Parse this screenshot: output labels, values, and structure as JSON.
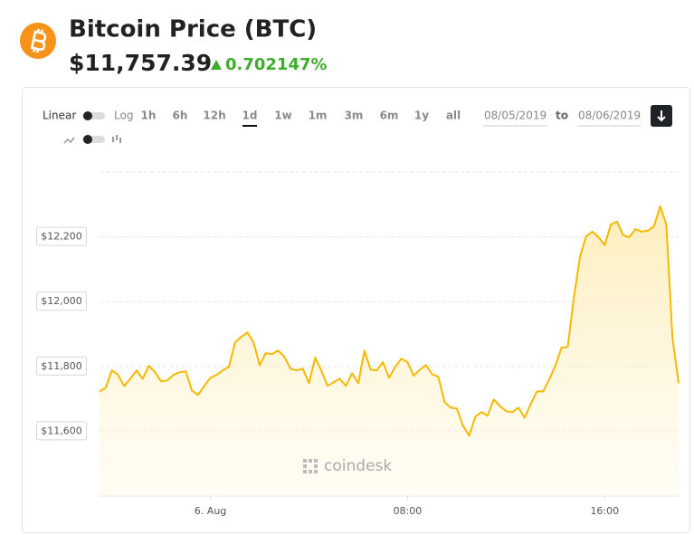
{
  "header": {
    "title": "Bitcoin Price (BTC)",
    "price": "$11,757.39",
    "change": "0.702147%"
  },
  "controls": {
    "scale_options": [
      "Linear",
      "Log"
    ],
    "ranges": [
      "1h",
      "6h",
      "12h",
      "1d",
      "1w",
      "1m",
      "3m",
      "6m",
      "1y",
      "all"
    ],
    "active_range": 3,
    "date_from": "08/05/2019",
    "date_to_label": "to",
    "date_to": "08/06/2019"
  },
  "watermark": "coindesk",
  "chart_data": {
    "type": "line",
    "color": "#f5b900",
    "grid": true,
    "x": [
      -4.5,
      -4.25,
      -4,
      -3.75,
      -3.5,
      -3.25,
      -3,
      -2.75,
      -2.5,
      -2.25,
      -2,
      -1.75,
      -1.5,
      -1.25,
      -1,
      -0.75,
      -0.5,
      -0.25,
      0,
      0.25,
      0.5,
      0.75,
      1,
      1.25,
      1.5,
      1.75,
      2,
      2.25,
      2.5,
      2.75,
      3,
      3.25,
      3.5,
      3.75,
      4,
      4.25,
      4.5,
      4.75,
      5,
      5.25,
      5.5,
      5.75,
      6,
      6.25,
      6.5,
      6.75,
      7,
      7.25,
      7.5,
      7.75,
      8,
      8.25,
      8.5,
      8.75,
      9,
      9.25,
      9.5,
      9.75,
      10,
      10.25,
      10.5,
      10.75,
      11,
      11.25,
      11.5,
      11.75,
      12,
      12.25,
      12.5,
      12.75,
      13,
      13.25,
      13.5,
      13.75,
      14,
      14.25,
      14.5,
      14.75,
      15,
      15.25,
      15.5,
      15.75,
      16,
      16.25,
      16.5,
      16.75,
      17,
      17.25,
      17.5,
      17.75,
      18,
      18.25,
      18.5,
      18.75,
      19
    ],
    "values": [
      11723,
      11734,
      11788,
      11774,
      11740,
      11762,
      11788,
      11762,
      11802,
      11782,
      11754,
      11757,
      11774,
      11782,
      11785,
      11726,
      11712,
      11740,
      11765,
      11774,
      11788,
      11799,
      11874,
      11891,
      11905,
      11874,
      11804,
      11841,
      11838,
      11849,
      11830,
      11793,
      11788,
      11793,
      11748,
      11827,
      11788,
      11740,
      11751,
      11762,
      11740,
      11779,
      11748,
      11849,
      11790,
      11788,
      11813,
      11765,
      11799,
      11824,
      11813,
      11771,
      11790,
      11804,
      11776,
      11768,
      11690,
      11673,
      11670,
      11617,
      11586,
      11645,
      11659,
      11648,
      11698,
      11678,
      11662,
      11659,
      11673,
      11642,
      11684,
      11723,
      11723,
      11760,
      11802,
      11858,
      11860,
      12014,
      12140,
      12202,
      12216,
      12199,
      12174,
      12238,
      12247,
      12205,
      12199,
      12224,
      12216,
      12219,
      12233,
      12294,
      12238,
      11888,
      11748
    ],
    "xlim": [
      -4.5,
      19
    ],
    "xticks": [
      {
        "value": 0,
        "label": "6. Aug"
      },
      {
        "value": 8,
        "label": "08:00"
      },
      {
        "value": 16,
        "label": "16:00"
      }
    ],
    "ylim": [
      11400,
      12400
    ],
    "yticks": [
      {
        "value": 11600,
        "label": "$11,600"
      },
      {
        "value": 11800,
        "label": "$11,800"
      },
      {
        "value": 12000,
        "label": "$12,000"
      },
      {
        "value": 12200,
        "label": "$12,200"
      }
    ]
  }
}
